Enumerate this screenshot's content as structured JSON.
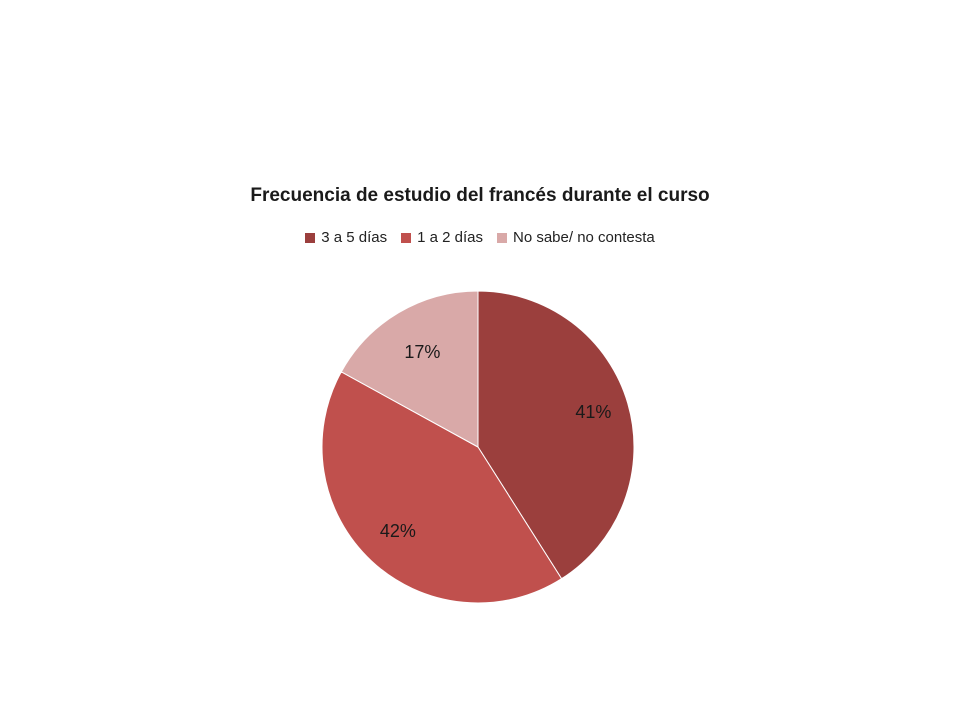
{
  "chart_data": {
    "type": "pie",
    "title": "Frecuencia de estudio del francés durante el curso",
    "categories": [
      "3 a 5 días",
      "1 a 2 días",
      "No sabe/ no contesta"
    ],
    "values": [
      41,
      42,
      17
    ],
    "value_labels": [
      "41%",
      "42%",
      "17%"
    ],
    "colors": [
      "#9b3f3d",
      "#c0504d",
      "#d9a9a8"
    ],
    "legend_position": "top",
    "start_angle": "12 o'clock, clockwise"
  }
}
